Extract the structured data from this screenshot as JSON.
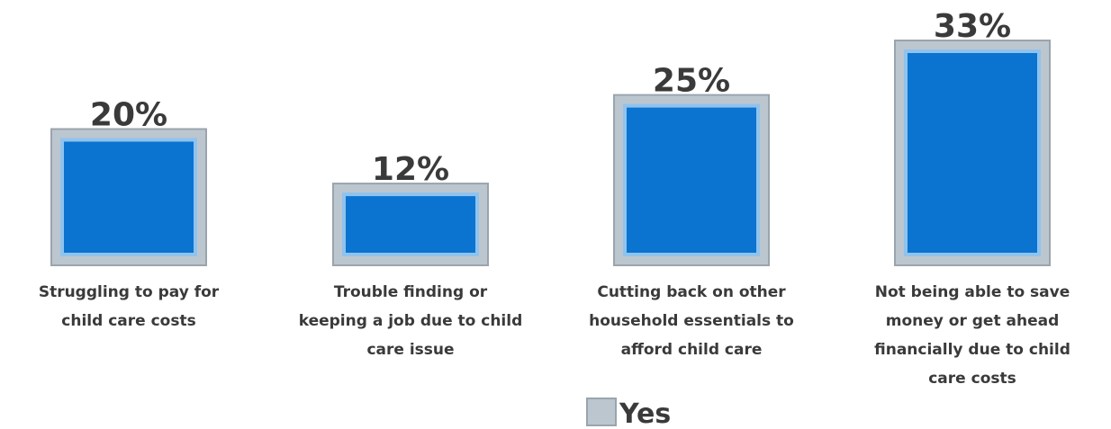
{
  "chart_data": {
    "type": "bar",
    "categories": [
      [
        "Struggling to pay for",
        "child care costs"
      ],
      [
        "Trouble finding or",
        "keeping a job due to child",
        "care issue"
      ],
      [
        "Cutting back on other",
        "household essentials to",
        "afford child care"
      ],
      [
        "Not being able to save",
        "money or get ahead",
        "financially due to child",
        "care costs"
      ]
    ],
    "series": [
      {
        "name": "Yes",
        "values": [
          20,
          12,
          25,
          33
        ],
        "data_labels": [
          "20%",
          "12%",
          "25%",
          "33%"
        ]
      }
    ],
    "ylim": [
      0,
      33
    ],
    "grid": false,
    "legend_position": "bottom-center",
    "colors": {
      "bar_fill": "#0b73d0",
      "bar_frame": "#bcc6cf",
      "bar_frame_edge": "#9aa4ad",
      "bar_inner_border": "#8fc3ee",
      "text": "#3a3a3a",
      "legend_swatch": "#bcc6cf"
    }
  }
}
